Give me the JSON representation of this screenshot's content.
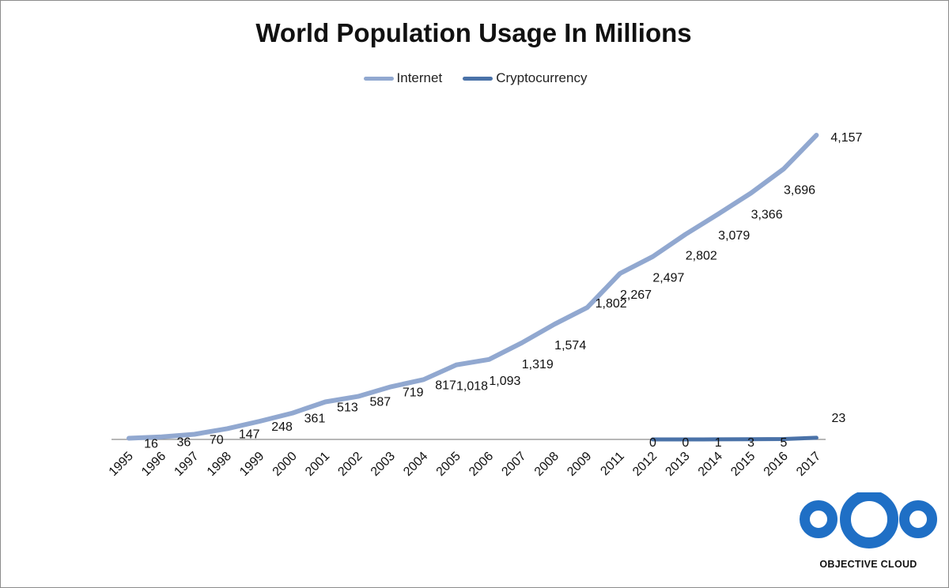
{
  "chart_data": {
    "type": "line",
    "title": "World Population Usage In Millions",
    "xlabel": "",
    "ylabel": "",
    "categories": [
      "1995",
      "1996",
      "1997",
      "1998",
      "1999",
      "2000",
      "2001",
      "2002",
      "2003",
      "2004",
      "2005",
      "2006",
      "2007",
      "2008",
      "2009",
      "2011",
      "2012",
      "2013",
      "2014",
      "2015",
      "2016",
      "2017"
    ],
    "series": [
      {
        "name": "Internet",
        "color": "#91a8d0",
        "values": [
          16,
          36,
          70,
          147,
          248,
          361,
          513,
          587,
          719,
          817,
          1018,
          1093,
          1319,
          1574,
          1802,
          2267,
          2497,
          2802,
          3079,
          3366,
          3696,
          4157
        ],
        "labels": [
          "16",
          "36",
          "70",
          "147",
          "248",
          "361",
          "513",
          "587",
          "719",
          "817",
          "1,018",
          "1,093",
          "1,319",
          "1,574",
          "1,802",
          "2,267",
          "2,497",
          "2,802",
          "3,079",
          "3,366",
          "3,696",
          "4,157"
        ]
      },
      {
        "name": "Cryptocurrency",
        "color": "#4a72a8",
        "values": [
          null,
          null,
          null,
          null,
          null,
          null,
          null,
          null,
          null,
          null,
          null,
          null,
          null,
          null,
          null,
          null,
          0,
          0,
          1,
          3,
          5,
          23
        ],
        "labels": [
          null,
          null,
          null,
          null,
          null,
          null,
          null,
          null,
          null,
          null,
          null,
          null,
          null,
          null,
          null,
          null,
          "0",
          "0",
          "1",
          "3",
          "5",
          "23"
        ]
      }
    ],
    "ylim": [
      0,
      4300
    ],
    "grid": false,
    "legend": "top-center"
  },
  "logo": {
    "text": "OBJECTIVE CLOUD",
    "color": "#1f6fc5"
  }
}
